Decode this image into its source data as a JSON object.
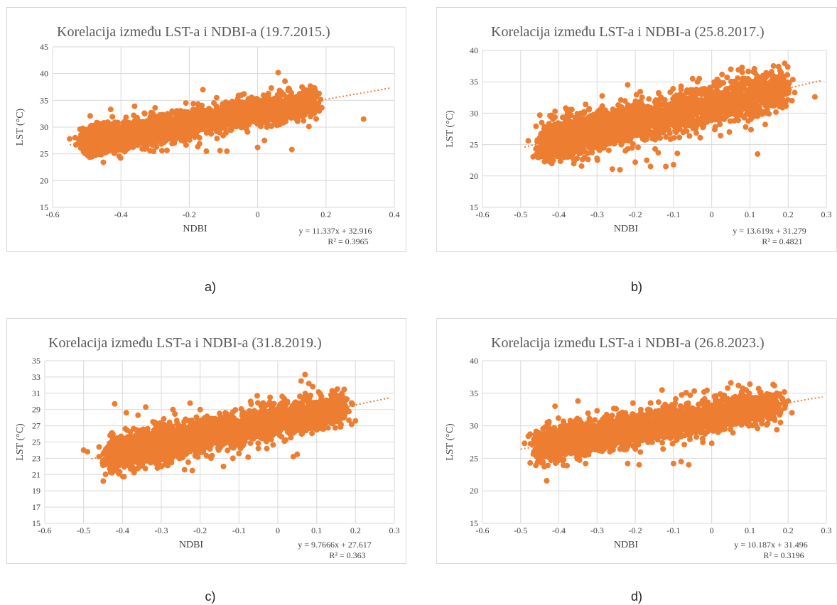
{
  "captions": [
    "a)",
    "b)",
    "c)",
    "d)"
  ],
  "chart_data": [
    {
      "type": "scatter",
      "title": "Korelacija između LST-a i NDBI-a (19.7.2015.)",
      "xlabel": "NDBI",
      "ylabel": "LST (°C)",
      "xlim": [
        -0.6,
        0.4
      ],
      "ylim": [
        15,
        45
      ],
      "xticks": [
        "-0.6",
        "-0.4",
        "-0.2",
        "0",
        "0.2",
        "0.4"
      ],
      "yticks": [
        "15",
        "20",
        "25",
        "30",
        "35",
        "40",
        "45"
      ],
      "grid": true,
      "marker_color": "#ED7D31",
      "trendline": {
        "type": "linear",
        "slope": 11.337,
        "intercept": 32.916,
        "equation": "y = 11.337x + 32.916",
        "r2": "R² = 0.3965"
      },
      "cloud": {
        "xmin": -0.5,
        "xmax": 0.17,
        "spread": 1.3
      },
      "points": [
        [
          -0.55,
          27.8
        ],
        [
          -0.52,
          29.6
        ],
        [
          -0.49,
          32.1
        ],
        [
          -0.47,
          25.9
        ],
        [
          -0.45,
          30.8
        ],
        [
          -0.43,
          33.3
        ],
        [
          -0.36,
          33.9
        ],
        [
          -0.3,
          33.6
        ],
        [
          -0.33,
          25.9
        ],
        [
          -0.28,
          25.6
        ],
        [
          -0.21,
          34.5
        ],
        [
          -0.16,
          37.0
        ],
        [
          -0.15,
          25.5
        ],
        [
          -0.17,
          26.9
        ],
        [
          -0.11,
          25.6
        ],
        [
          -0.09,
          25.5
        ],
        [
          -0.12,
          35.5
        ],
        [
          -0.04,
          36.2
        ],
        [
          0.0,
          26.2
        ],
        [
          0.02,
          27.5
        ],
        [
          0.04,
          37.3
        ],
        [
          0.06,
          40.2
        ],
        [
          0.08,
          38.6
        ],
        [
          0.09,
          36.9
        ],
        [
          0.1,
          25.8
        ],
        [
          0.11,
          35.2
        ],
        [
          0.12,
          33.9
        ],
        [
          0.13,
          37.5
        ],
        [
          0.15,
          30.1
        ],
        [
          0.16,
          36.2
        ],
        [
          0.17,
          34.0
        ],
        [
          0.18,
          33.0
        ],
        [
          0.31,
          31.5
        ]
      ]
    },
    {
      "type": "scatter",
      "title": "Korelacija između LST-a i NDBI-a (25.8.2017.)",
      "xlabel": "NDBI",
      "ylabel": "LST (°C)",
      "xlim": [
        -0.6,
        0.3
      ],
      "ylim": [
        15,
        40
      ],
      "xticks": [
        "-0.6",
        "-0.5",
        "-0.4",
        "-0.3",
        "-0.2",
        "-0.1",
        "0",
        "0.1",
        "0.2",
        "0.3"
      ],
      "yticks": [
        "15",
        "20",
        "25",
        "30",
        "35",
        "40"
      ],
      "grid": true,
      "marker_color": "#ED7D31",
      "trendline": {
        "type": "linear",
        "slope": 13.619,
        "intercept": 31.279,
        "equation": "y = 13.619x + 31.279",
        "r2": "R² = 0.4821"
      },
      "cloud": {
        "xmin": -0.44,
        "xmax": 0.19,
        "spread": 1.6
      },
      "points": [
        [
          -0.48,
          25.6
        ],
        [
          -0.46,
          24.3
        ],
        [
          -0.45,
          29.7
        ],
        [
          -0.43,
          23.1
        ],
        [
          -0.41,
          30.3
        ],
        [
          -0.38,
          30.6
        ],
        [
          -0.36,
          22.4
        ],
        [
          -0.33,
          31.4
        ],
        [
          -0.3,
          22.8
        ],
        [
          -0.26,
          21.1
        ],
        [
          -0.24,
          21.0
        ],
        [
          -0.22,
          34.5
        ],
        [
          -0.2,
          22.2
        ],
        [
          -0.17,
          22.5
        ],
        [
          -0.16,
          21.5
        ],
        [
          -0.14,
          23.7
        ],
        [
          -0.12,
          21.5
        ],
        [
          -0.1,
          21.8
        ],
        [
          -0.09,
          23.6
        ],
        [
          -0.08,
          34.3
        ],
        [
          -0.05,
          35.5
        ],
        [
          -0.03,
          26.1
        ],
        [
          0.02,
          35.0
        ],
        [
          0.05,
          37.0
        ],
        [
          0.07,
          36.9
        ],
        [
          0.08,
          36.5
        ],
        [
          0.12,
          23.5
        ],
        [
          0.14,
          28.2
        ],
        [
          0.15,
          29.9
        ],
        [
          0.16,
          36.0
        ],
        [
          0.19,
          35.1
        ],
        [
          0.2,
          33.7
        ],
        [
          0.21,
          32.0
        ],
        [
          0.27,
          32.6
        ]
      ]
    },
    {
      "type": "scatter",
      "title": "Korelacija između LST-a i NDBI-a (31.8.2019.)",
      "xlabel": "NDBI",
      "ylabel": "LST (°C)",
      "xlim": [
        -0.6,
        0.3
      ],
      "ylim": [
        15,
        35
      ],
      "xticks": [
        "-0.6",
        "-0.5",
        "-0.4",
        "-0.3",
        "-0.2",
        "-0.1",
        "0",
        "0.1",
        "0.2",
        "0.3"
      ],
      "yticks": [
        "15",
        "17",
        "19",
        "21",
        "23",
        "25",
        "27",
        "29",
        "31",
        "33",
        "35"
      ],
      "grid": true,
      "marker_color": "#ED7D31",
      "trendline": {
        "type": "linear",
        "slope": 9.7666,
        "intercept": 27.617,
        "equation": "y = 9.7666x + 27.617",
        "r2": "R² = 0.363"
      },
      "cloud": {
        "xmin": -0.43,
        "xmax": 0.17,
        "spread": 1.05
      },
      "points": [
        [
          -0.5,
          24.0
        ],
        [
          -0.49,
          23.8
        ],
        [
          -0.46,
          24.4
        ],
        [
          -0.44,
          22.3
        ],
        [
          -0.42,
          29.7
        ],
        [
          -0.39,
          28.6
        ],
        [
          -0.36,
          28.3
        ],
        [
          -0.34,
          29.3
        ],
        [
          -0.31,
          21.8
        ],
        [
          -0.27,
          29.0
        ],
        [
          -0.24,
          21.6
        ],
        [
          -0.22,
          21.5
        ],
        [
          -0.2,
          29.0
        ],
        [
          -0.14,
          22.0
        ],
        [
          -0.1,
          23.6
        ],
        [
          -0.07,
          30.0
        ],
        [
          -0.02,
          30.5
        ],
        [
          0.04,
          23.2
        ],
        [
          0.05,
          23.5
        ],
        [
          0.06,
          32.5
        ],
        [
          0.07,
          33.3
        ],
        [
          0.08,
          32.2
        ],
        [
          0.09,
          31.8
        ],
        [
          0.1,
          26.5
        ],
        [
          0.12,
          29.5
        ],
        [
          0.14,
          31.3
        ],
        [
          0.15,
          29.0
        ],
        [
          0.17,
          28.0
        ],
        [
          0.19,
          29.8
        ],
        [
          0.2,
          27.6
        ]
      ]
    },
    {
      "type": "scatter",
      "title": "Korelacija između LST-a i NDBI-a (26.8.2023.)",
      "xlabel": "NDBI",
      "ylabel": "LST (°C)",
      "xlim": [
        -0.6,
        0.3
      ],
      "ylim": [
        15,
        40
      ],
      "xticks": [
        "-0.6",
        "-0.5",
        "-0.4",
        "-0.3",
        "-0.2",
        "-0.1",
        "0",
        "0.1",
        "0.2",
        "0.3"
      ],
      "yticks": [
        "15",
        "20",
        "25",
        "30",
        "35",
        "40"
      ],
      "grid": true,
      "marker_color": "#ED7D31",
      "trendline": {
        "type": "linear",
        "slope": 10.187,
        "intercept": 31.496,
        "equation": "y = 10.187x + 31.496",
        "r2": "R² = 0.3196"
      },
      "cloud": {
        "xmin": -0.45,
        "xmax": 0.17,
        "spread": 1.25
      },
      "points": [
        [
          -0.49,
          27.3
        ],
        [
          -0.48,
          28.4
        ],
        [
          -0.46,
          26.0
        ],
        [
          -0.43,
          30.5
        ],
        [
          -0.41,
          33.0
        ],
        [
          -0.38,
          25.9
        ],
        [
          -0.35,
          33.8
        ],
        [
          -0.33,
          24.2
        ],
        [
          -0.3,
          32.3
        ],
        [
          -0.25,
          32.6
        ],
        [
          -0.22,
          24.2
        ],
        [
          -0.19,
          24.0
        ],
        [
          -0.16,
          33.5
        ],
        [
          -0.13,
          35.5
        ],
        [
          -0.1,
          24.2
        ],
        [
          -0.08,
          24.5
        ],
        [
          -0.06,
          24.0
        ],
        [
          -0.02,
          35.2
        ],
        [
          0.0,
          27.3
        ],
        [
          0.05,
          36.6
        ],
        [
          0.07,
          36.2
        ],
        [
          0.09,
          35.5
        ],
        [
          0.1,
          36.4
        ],
        [
          0.12,
          29.6
        ],
        [
          0.14,
          31.9
        ],
        [
          0.16,
          34.7
        ],
        [
          0.17,
          35.0
        ],
        [
          0.18,
          30.5
        ],
        [
          0.19,
          35.2
        ],
        [
          0.2,
          33.8
        ],
        [
          0.21,
          32.0
        ]
      ]
    }
  ]
}
